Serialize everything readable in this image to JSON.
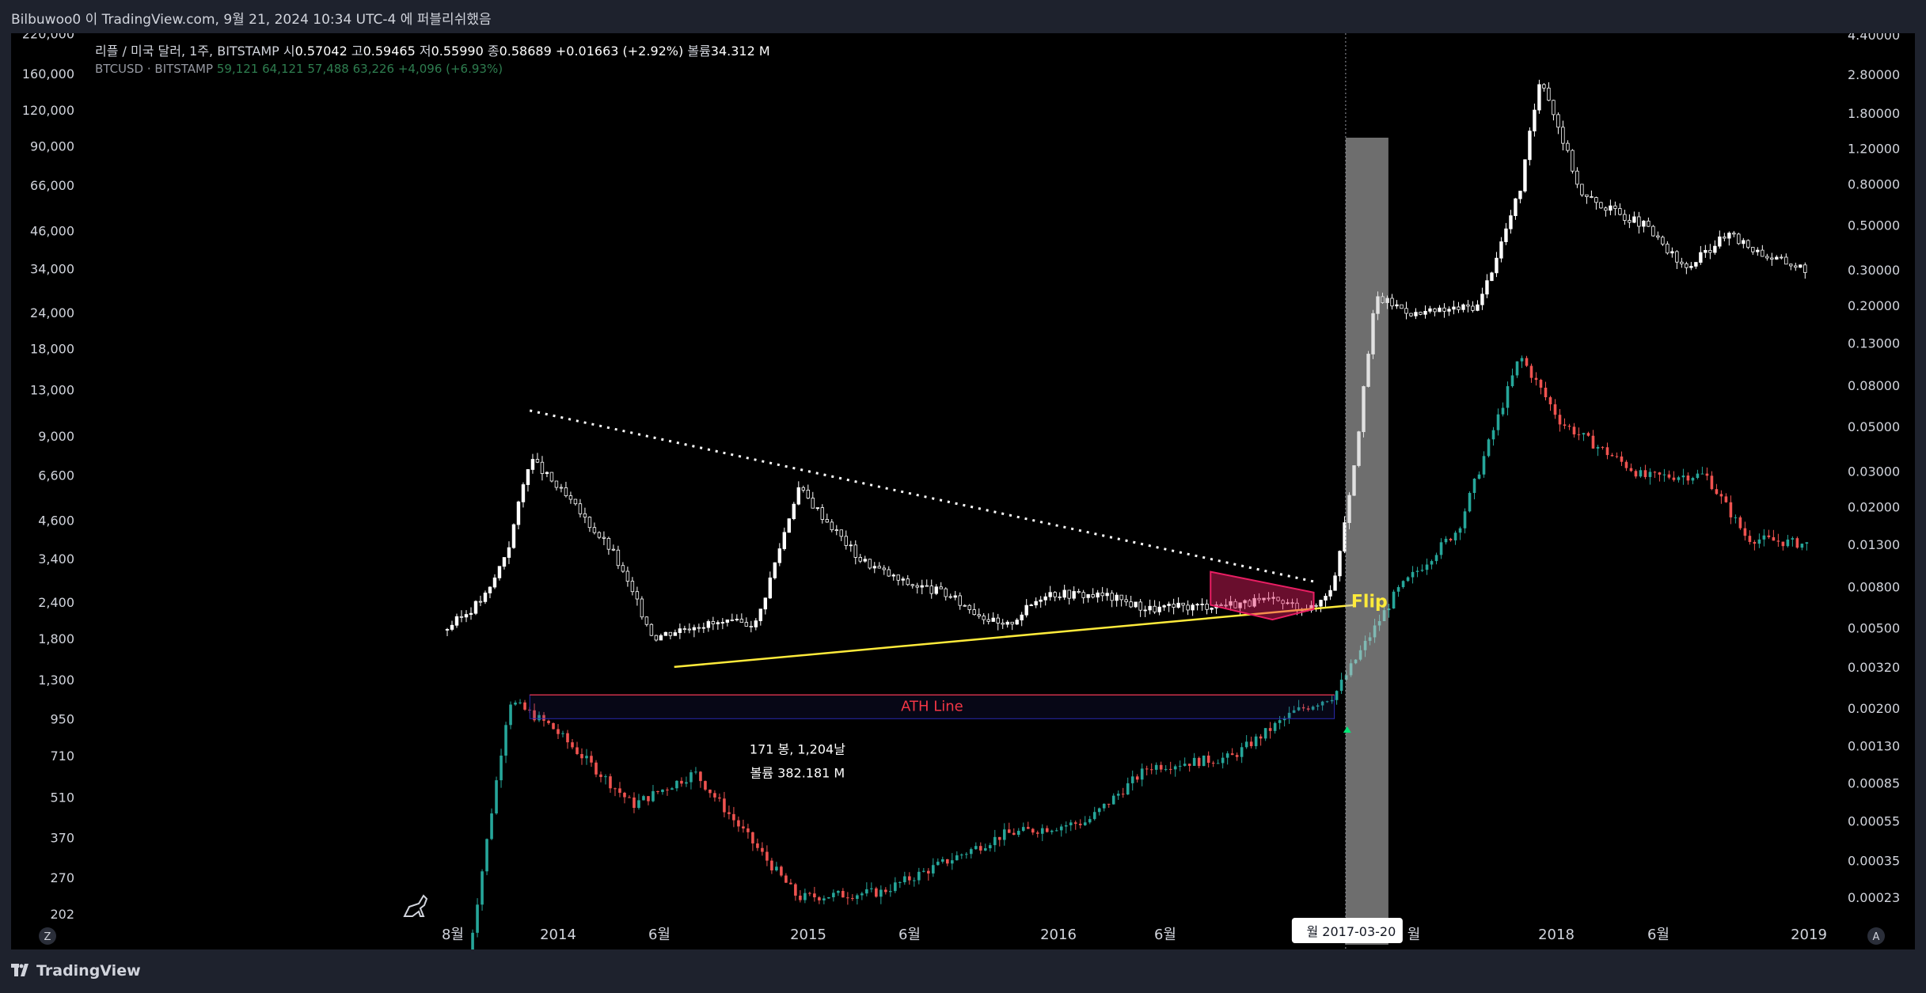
{
  "header": {
    "publish_text": "Bilbuwoo0 이 TradingView.com, 9월 21, 2024 10:34 UTC-4 에 퍼블리쉬했음"
  },
  "legend": {
    "main_title": "리플 / 미국 달러, 1주, BITSTAMP",
    "o_label": "시",
    "o_value": "0.57042",
    "h_label": "고",
    "h_value": "0.59465",
    "l_label": "저",
    "l_value": "0.55990",
    "c_label": "종",
    "c_value": "0.58689",
    "change": "+0.01663 (+2.92%)",
    "vol_label": "볼륨",
    "vol_value": "34.312 M",
    "btc_title": "BTCUSD · BITSTAMP",
    "btc_values": "59,121  64,121  57,488  63,226  +4,096 (+6.93%)"
  },
  "annotations": {
    "ath": "ATH Line",
    "flip": "Flip",
    "measure_bars": "171 봉, 1,204날",
    "measure_vol": "볼륨 382.181 M",
    "crosshair_date": "2017-03-20",
    "crosshair_prefix": "월"
  },
  "footer": {
    "brand": "TradingView",
    "z_button": "Z",
    "a_button": "A"
  },
  "colors": {
    "background": "#000000",
    "ath": "#f23645",
    "trend": "#ffeb3b",
    "pink": "#e91e63",
    "up": "#26a69a",
    "down": "#ef5350",
    "flip": "#ffeb3b"
  },
  "chart_data": {
    "type": "candlestick",
    "title": "리플 / 미국 달러, 1주, BITSTAMP",
    "left_axis": {
      "scale": "log",
      "series": "BTCUSD · BITSTAMP",
      "ticks": [
        "220,000",
        "160,000",
        "120,000",
        "90,000",
        "66,000",
        "46,000",
        "34,000",
        "24,000",
        "18,000",
        "13,000",
        "9,000",
        "6,600",
        "4,600",
        "3,400",
        "2,400",
        "1,800",
        "1,300",
        "950",
        "710",
        "510",
        "370",
        "270",
        "202"
      ]
    },
    "right_axis": {
      "scale": "log",
      "series": "XRPUSD",
      "ticks": [
        "4.40000",
        "2.80000",
        "1.80000",
        "1.20000",
        "0.80000",
        "0.50000",
        "0.30000",
        "0.20000",
        "0.13000",
        "0.08000",
        "0.05000",
        "0.03000",
        "0.02000",
        "0.01300",
        "0.00800",
        "0.00500",
        "0.00320",
        "0.00200",
        "0.00130",
        "0.00085",
        "0.00055",
        "0.00035",
        "0.00023"
      ]
    },
    "x_ticks": [
      "8월",
      "2014",
      "6월",
      "2015",
      "6월",
      "2016",
      "6월",
      "20",
      "월",
      "2018",
      "6월",
      "2019"
    ],
    "xrp_series": [
      {
        "date": "2013-08",
        "close": 0.005
      },
      {
        "date": "2013-09",
        "close": 0.006
      },
      {
        "date": "2013-10",
        "close": 0.0075
      },
      {
        "date": "2013-11",
        "close": 0.013
      },
      {
        "date": "2013-12",
        "close": 0.035
      },
      {
        "date": "2014-02",
        "close": 0.021
      },
      {
        "date": "2014-04",
        "close": 0.012
      },
      {
        "date": "2014-06",
        "close": 0.0045
      },
      {
        "date": "2014-08",
        "close": 0.0052
      },
      {
        "date": "2014-11",
        "close": 0.0053
      },
      {
        "date": "2015-01",
        "close": 0.025
      },
      {
        "date": "2015-04",
        "close": 0.011
      },
      {
        "date": "2015-06",
        "close": 0.0085
      },
      {
        "date": "2015-08",
        "close": 0.0075
      },
      {
        "date": "2015-11",
        "close": 0.005
      },
      {
        "date": "2016-01",
        "close": 0.0075
      },
      {
        "date": "2016-04",
        "close": 0.0072
      },
      {
        "date": "2016-06",
        "close": 0.0062
      },
      {
        "date": "2016-09",
        "close": 0.0065
      },
      {
        "date": "2016-12",
        "close": 0.0068
      },
      {
        "date": "2017-02",
        "close": 0.0062
      },
      {
        "date": "2017-03",
        "close": 0.0085
      },
      {
        "date": "2017-04",
        "close": 0.035
      },
      {
        "date": "2017-05",
        "close": 0.22
      },
      {
        "date": "2017-07",
        "close": 0.18
      },
      {
        "date": "2017-10",
        "close": 0.2
      },
      {
        "date": "2017-12",
        "close": 0.75
      },
      {
        "date": "2018-01",
        "close": 2.8
      },
      {
        "date": "2018-03",
        "close": 0.7
      },
      {
        "date": "2018-06",
        "close": 0.5
      },
      {
        "date": "2018-08",
        "close": 0.3
      },
      {
        "date": "2018-10",
        "close": 0.45
      },
      {
        "date": "2018-12",
        "close": 0.35
      },
      {
        "date": "2019-02",
        "close": 0.3
      }
    ],
    "btc_series": [
      {
        "date": "2013-09",
        "close": 140
      },
      {
        "date": "2013-11",
        "close": 1100
      },
      {
        "date": "2014-01",
        "close": 900
      },
      {
        "date": "2014-05",
        "close": 480
      },
      {
        "date": "2014-08",
        "close": 620
      },
      {
        "date": "2015-01",
        "close": 230
      },
      {
        "date": "2015-05",
        "close": 240
      },
      {
        "date": "2015-11",
        "close": 380
      },
      {
        "date": "2016-03",
        "close": 420
      },
      {
        "date": "2016-06",
        "close": 650
      },
      {
        "date": "2016-10",
        "close": 700
      },
      {
        "date": "2017-01",
        "close": 1000
      },
      {
        "date": "2017-03",
        "close": 1150
      },
      {
        "date": "2017-06",
        "close": 2600
      },
      {
        "date": "2017-09",
        "close": 4300
      },
      {
        "date": "2017-12",
        "close": 17000
      },
      {
        "date": "2018-02",
        "close": 10000
      },
      {
        "date": "2018-06",
        "close": 6500
      },
      {
        "date": "2018-09",
        "close": 6600
      },
      {
        "date": "2018-11",
        "close": 4000
      },
      {
        "date": "2019-02",
        "close": 3800
      }
    ],
    "trendlines": [
      {
        "name": "descending-resistance",
        "from": {
          "date": "2013-12",
          "price": 0.06
        },
        "to": {
          "date": "2017-02",
          "price": 0.0085
        }
      },
      {
        "name": "ascending-support",
        "from": {
          "date": "2014-07",
          "price": 0.0032
        },
        "to": {
          "date": "2017-04",
          "price": 0.0065
        }
      }
    ],
    "ath_line_btc": 1150,
    "highlight_date": "2017-03-20",
    "grid": false,
    "legend_position": "top-left"
  }
}
